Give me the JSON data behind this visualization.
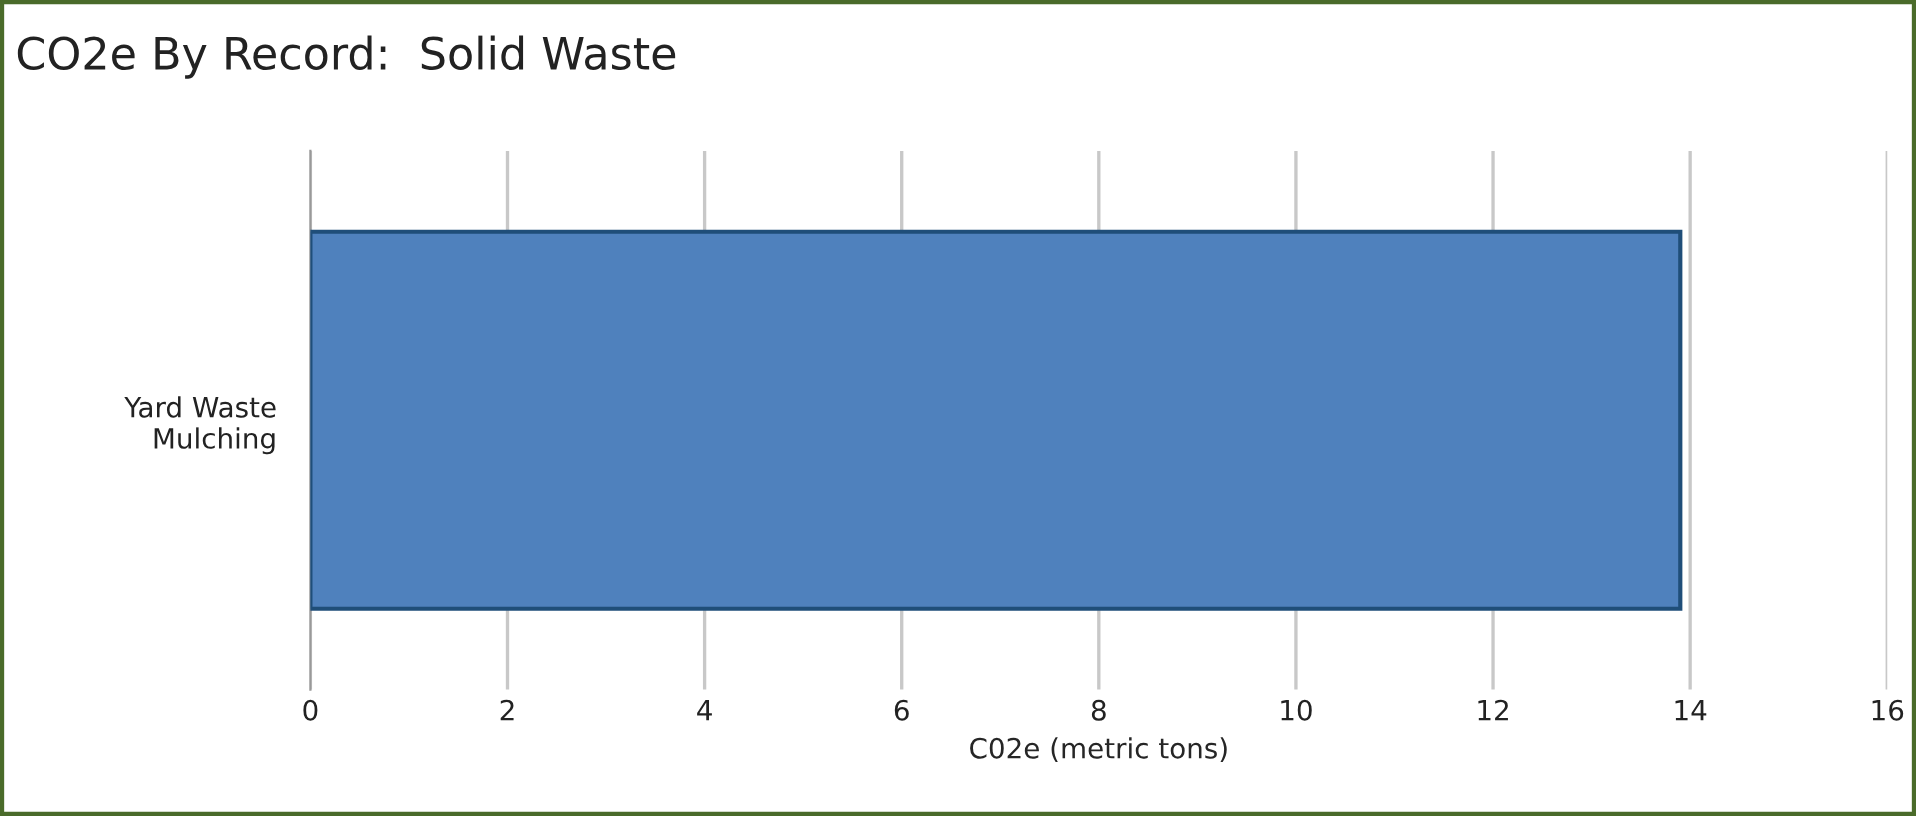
{
  "chart_data": {
    "type": "bar",
    "title": "CO2e By Record:  Solid Waste",
    "xlabel": "C02e (metric tons)",
    "orientation": "horizontal",
    "categories": [
      "Yard Waste\nMulching"
    ],
    "series": [
      {
        "color": "#4f81bd",
        "values": [
          13.9
        ]
      }
    ],
    "xlim": [
      0,
      16
    ],
    "xticks": [
      0,
      2,
      4,
      6,
      8,
      10,
      12,
      14,
      16
    ],
    "grid": "x"
  }
}
